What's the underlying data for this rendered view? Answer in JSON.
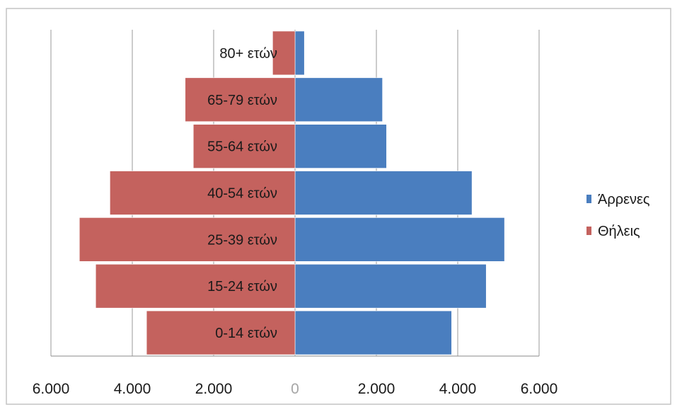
{
  "chart_data": {
    "type": "bar",
    "orientation": "horizontal",
    "categories": [
      "0-14 ετών",
      "15-24 ετών",
      "25-39 ετών",
      "40-54 ετών",
      "55-64 ετών",
      "65-79 ετών",
      "80+ ετών"
    ],
    "series": [
      {
        "name": "Άρρενες",
        "values": [
          3850,
          4700,
          5150,
          4350,
          2250,
          2150,
          230
        ],
        "color": "#4A7EBF",
        "side": "right"
      },
      {
        "name": "Θήλεις",
        "values": [
          3650,
          4900,
          5300,
          4550,
          2500,
          2700,
          550
        ],
        "color": "#C4625E",
        "side": "left"
      }
    ],
    "xlim": [
      -6000,
      6000
    ],
    "x_tick_values": [
      -6000,
      -4000,
      -2000,
      0,
      2000,
      4000,
      6000
    ],
    "x_tick_labels": [
      "6.000",
      "4.000",
      "2.000",
      "0",
      "2.000",
      "4.000",
      "6.000"
    ],
    "grid": "vertical",
    "legend": "right"
  }
}
